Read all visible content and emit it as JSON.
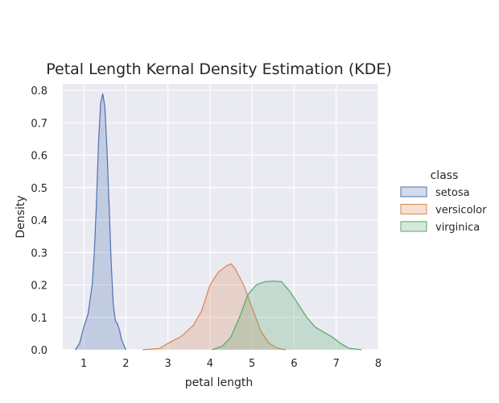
{
  "chart_data": {
    "type": "area",
    "subtype": "kde",
    "title": "Petal Length Kernal Density Estimation (KDE)",
    "xlabel": "petal length",
    "ylabel": "Density",
    "xlim": [
      0.5,
      8.0
    ],
    "ylim": [
      0.0,
      0.82
    ],
    "xticks": [
      1,
      2,
      3,
      4,
      5,
      6,
      7,
      8
    ],
    "yticks": [
      0.0,
      0.1,
      0.2,
      0.3,
      0.4,
      0.5,
      0.6,
      0.7,
      0.8
    ],
    "xtick_labels": [
      "1",
      "2",
      "3",
      "4",
      "5",
      "6",
      "7",
      "8"
    ],
    "ytick_labels": [
      "0.0",
      "0.1",
      "0.2",
      "0.3",
      "0.4",
      "0.5",
      "0.6",
      "0.7",
      "0.8"
    ],
    "grid": true,
    "background": "#eaeaf2",
    "legend": {
      "title": "class",
      "position": "outside-right"
    },
    "series": [
      {
        "name": "setosa",
        "color": "#4c72b0",
        "points": [
          [
            0.8,
            0.0
          ],
          [
            0.9,
            0.02
          ],
          [
            1.0,
            0.07
          ],
          [
            1.1,
            0.11
          ],
          [
            1.2,
            0.2
          ],
          [
            1.25,
            0.3
          ],
          [
            1.3,
            0.45
          ],
          [
            1.35,
            0.64
          ],
          [
            1.4,
            0.76
          ],
          [
            1.45,
            0.79
          ],
          [
            1.5,
            0.75
          ],
          [
            1.55,
            0.62
          ],
          [
            1.6,
            0.45
          ],
          [
            1.65,
            0.27
          ],
          [
            1.7,
            0.14
          ],
          [
            1.75,
            0.09
          ],
          [
            1.8,
            0.08
          ],
          [
            1.85,
            0.06
          ],
          [
            1.9,
            0.03
          ],
          [
            2.0,
            0.0
          ]
        ]
      },
      {
        "name": "versicolor",
        "color": "#dd8452",
        "points": [
          [
            2.4,
            0.0
          ],
          [
            2.8,
            0.004
          ],
          [
            3.0,
            0.02
          ],
          [
            3.3,
            0.04
          ],
          [
            3.6,
            0.075
          ],
          [
            3.8,
            0.12
          ],
          [
            4.0,
            0.2
          ],
          [
            4.2,
            0.24
          ],
          [
            4.4,
            0.26
          ],
          [
            4.5,
            0.265
          ],
          [
            4.6,
            0.25
          ],
          [
            4.8,
            0.2
          ],
          [
            5.0,
            0.13
          ],
          [
            5.2,
            0.06
          ],
          [
            5.4,
            0.02
          ],
          [
            5.6,
            0.005
          ],
          [
            5.8,
            0.0
          ]
        ]
      },
      {
        "name": "virginica",
        "color": "#55a868",
        "points": [
          [
            4.05,
            0.0
          ],
          [
            4.3,
            0.012
          ],
          [
            4.5,
            0.04
          ],
          [
            4.7,
            0.1
          ],
          [
            4.9,
            0.17
          ],
          [
            5.1,
            0.2
          ],
          [
            5.3,
            0.21
          ],
          [
            5.5,
            0.212
          ],
          [
            5.7,
            0.21
          ],
          [
            5.9,
            0.18
          ],
          [
            6.1,
            0.14
          ],
          [
            6.3,
            0.1
          ],
          [
            6.5,
            0.07
          ],
          [
            6.7,
            0.055
          ],
          [
            6.9,
            0.04
          ],
          [
            7.1,
            0.02
          ],
          [
            7.3,
            0.005
          ],
          [
            7.6,
            0.0
          ]
        ]
      }
    ]
  }
}
